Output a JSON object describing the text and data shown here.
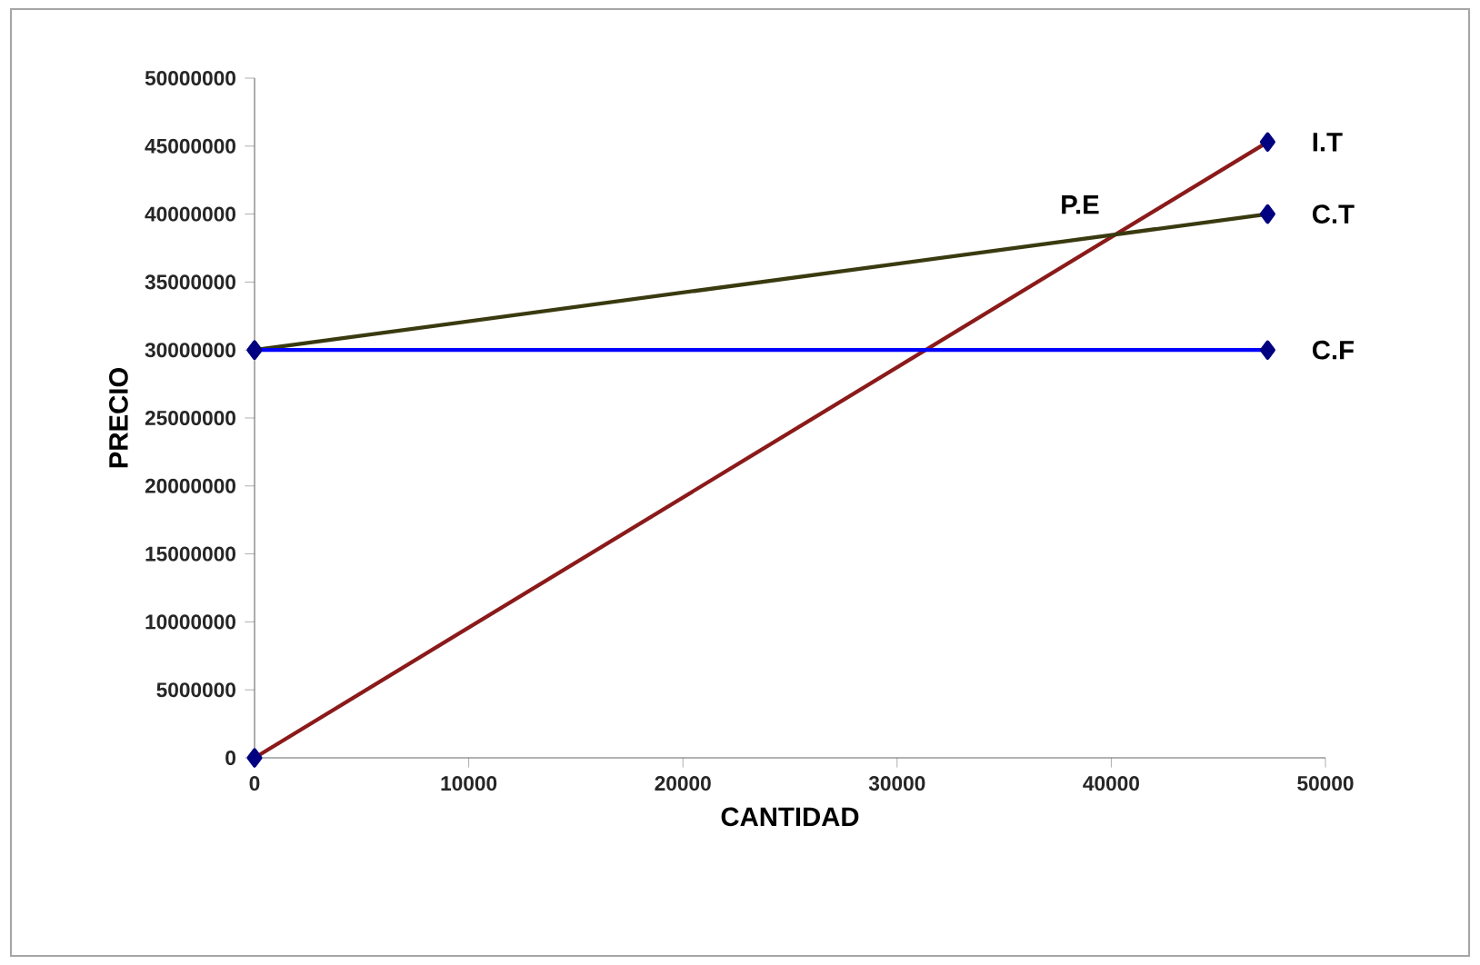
{
  "chart_data": {
    "type": "line",
    "xlabel": "CANTIDAD",
    "ylabel": "PRECIO",
    "xlim": [
      0,
      50000
    ],
    "ylim": [
      0,
      50000000
    ],
    "xticks": [
      0,
      10000,
      20000,
      30000,
      40000,
      50000
    ],
    "yticks": [
      0,
      5000000,
      10000000,
      15000000,
      20000000,
      25000000,
      30000000,
      35000000,
      40000000,
      45000000,
      50000000
    ],
    "x": [
      0,
      47300
    ],
    "series": [
      {
        "name": "I.T",
        "color": "#8b1a1a",
        "values": [
          0,
          45300000
        ]
      },
      {
        "name": "C.T",
        "color": "#3a3a10",
        "values": [
          30000000,
          40000000
        ]
      },
      {
        "name": "C.F",
        "color": "#0000ff",
        "values": [
          30000000,
          30000000
        ]
      }
    ],
    "marker": "diamond",
    "line_style": "solid",
    "grid": false,
    "legend": false,
    "annotations": [
      {
        "text": "P.E",
        "x": 40200,
        "y": 38500000
      }
    ]
  }
}
